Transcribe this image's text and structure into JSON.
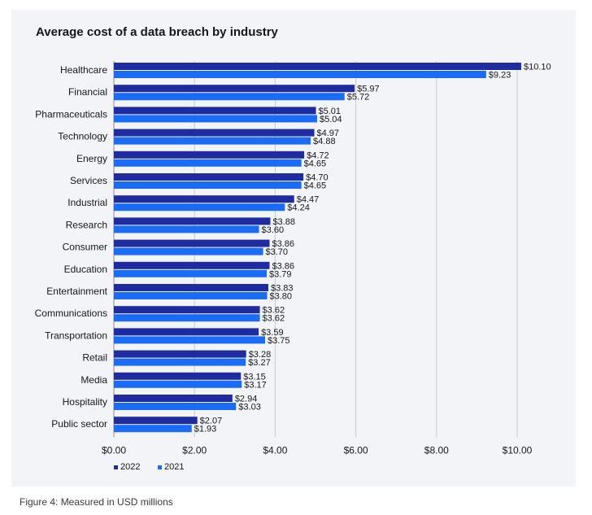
{
  "chart_data": {
    "type": "bar",
    "orientation": "horizontal",
    "title": "Average cost of a data breach by industry",
    "categories": [
      "Healthcare",
      "Financial",
      "Pharmaceuticals",
      "Technology",
      "Energy",
      "Services",
      "Industrial",
      "Research",
      "Consumer",
      "Education",
      "Entertainment",
      "Communications",
      "Transportation",
      "Retail",
      "Media",
      "Hospitality",
      "Public sector"
    ],
    "series": [
      {
        "name": "2022",
        "color": "#1f2ca0",
        "values": [
          10.1,
          5.97,
          5.01,
          4.97,
          4.72,
          4.7,
          4.47,
          3.88,
          3.86,
          3.86,
          3.83,
          3.62,
          3.59,
          3.28,
          3.15,
          2.94,
          2.07
        ],
        "labels": [
          "$10.10",
          "$5.97",
          "$5.01",
          "$4.97",
          "$4.72",
          "$4.70",
          "$4.47",
          "$3.88",
          "$3.86",
          "$3.86",
          "$3.83",
          "$3.62",
          "$3.59",
          "$3.28",
          "$3.15",
          "$2.94",
          "$2.07"
        ]
      },
      {
        "name": "2021",
        "color": "#1a6cf5",
        "values": [
          9.23,
          5.72,
          5.04,
          4.88,
          4.65,
          4.65,
          4.24,
          3.6,
          3.7,
          3.79,
          3.8,
          3.62,
          3.75,
          3.27,
          3.17,
          3.03,
          1.93
        ],
        "labels": [
          "$9.23",
          "$5.72",
          "$5.04",
          "$4.88",
          "$4.65",
          "$4.65",
          "$4.24",
          "$3.60",
          "$3.70",
          "$3.79",
          "$3.80",
          "$3.62",
          "$3.75",
          "$3.27",
          "$3.17",
          "$3.03",
          "$1.93"
        ]
      }
    ],
    "xlim": [
      0,
      10
    ],
    "xticks": [
      0,
      2,
      4,
      6,
      8,
      10
    ],
    "xtick_labels": [
      "$0.00",
      "$2.00",
      "$4.00",
      "$6.00",
      "$8.00",
      "$10.00"
    ],
    "grid": true,
    "legend_position": "bottom-left"
  },
  "caption": "Figure 4: Measured in USD millions"
}
